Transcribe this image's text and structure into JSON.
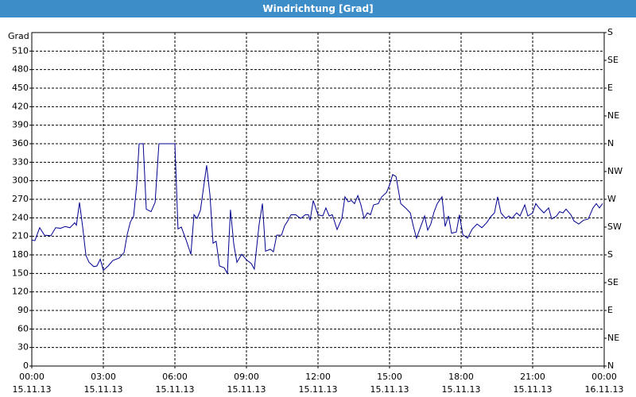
{
  "chart_data": {
    "type": "line",
    "title": "Windrichtung [Grad]",
    "y_label": "Grad",
    "x": [
      0,
      0.13,
      0.33,
      0.53,
      0.8,
      1,
      1.2,
      1.4,
      1.6,
      1.8,
      1.87,
      2,
      2.13,
      2.27,
      2.4,
      2.6,
      2.73,
      2.87,
      3,
      3.2,
      3.4,
      3.67,
      3.87,
      4,
      4.13,
      4.27,
      4.4,
      4.5,
      4.67,
      4.8,
      5,
      5.17,
      5.33,
      5.5,
      6,
      6.13,
      6.27,
      6.47,
      6.67,
      6.8,
      6.93,
      7.07,
      7.33,
      7.47,
      7.6,
      7.73,
      7.87,
      8.07,
      8.2,
      8.33,
      8.47,
      8.6,
      8.8,
      9,
      9.2,
      9.33,
      9.53,
      9.67,
      9.8,
      10,
      10.13,
      10.27,
      10.47,
      10.6,
      10.73,
      10.87,
      11.07,
      11.27,
      11.47,
      11.6,
      11.67,
      11.8,
      12,
      12.2,
      12.33,
      12.47,
      12.6,
      12.8,
      13,
      13.13,
      13.27,
      13.4,
      13.53,
      13.67,
      13.8,
      13.93,
      14.07,
      14.2,
      14.33,
      14.53,
      14.67,
      14.87,
      15,
      15.13,
      15.27,
      15.47,
      15.67,
      15.87,
      16,
      16.13,
      16.27,
      16.47,
      16.6,
      16.73,
      16.87,
      17,
      17.2,
      17.33,
      17.47,
      17.6,
      17.8,
      17.93,
      18.07,
      18.27,
      18.47,
      18.67,
      18.87,
      19.07,
      19.27,
      19.4,
      19.53,
      19.67,
      19.87,
      20,
      20.13,
      20.33,
      20.47,
      20.67,
      20.8,
      21,
      21.13,
      21.27,
      21.47,
      21.67,
      21.8,
      22,
      22.13,
      22.27,
      22.4,
      22.6,
      22.73,
      22.93,
      23.13,
      23.33,
      23.53,
      23.67,
      23.8,
      23.93
    ],
    "series": [
      {
        "color": "#000090",
        "values": [
          204,
          203,
          224,
          212,
          211,
          224,
          223,
          226,
          224,
          232,
          228,
          265,
          226,
          179,
          168,
          161,
          162,
          173,
          155,
          162,
          171,
          175,
          184,
          213,
          233,
          243,
          294,
          360,
          360,
          254,
          250,
          265,
          360,
          360,
          360,
          222,
          225,
          204,
          181,
          245,
          239,
          252,
          325,
          277,
          199,
          202,
          162,
          159,
          150,
          253,
          197,
          168,
          181,
          172,
          166,
          157,
          229,
          263,
          186,
          189,
          185,
          212,
          212,
          227,
          235,
          245,
          245,
          239,
          245,
          245,
          236,
          268,
          245,
          243,
          256,
          243,
          245,
          221,
          239,
          274,
          266,
          268,
          263,
          276,
          261,
          239,
          248,
          245,
          261,
          263,
          274,
          281,
          293,
          310,
          307,
          263,
          256,
          248,
          226,
          207,
          222,
          243,
          220,
          230,
          250,
          263,
          274,
          226,
          243,
          215,
          217,
          245,
          213,
          207,
          222,
          230,
          224,
          232,
          243,
          248,
          274,
          248,
          239,
          243,
          239,
          248,
          243,
          261,
          243,
          248,
          263,
          256,
          248,
          256,
          238,
          243,
          250,
          248,
          254,
          245,
          235,
          230,
          236,
          238,
          256,
          263,
          256,
          263
        ]
      }
    ],
    "xlim": [
      0,
      24
    ],
    "xticks": [
      {
        "value": 0,
        "label": "00:00",
        "date": "15.11.13"
      },
      {
        "value": 3,
        "label": "03:00",
        "date": "15.11.13"
      },
      {
        "value": 6,
        "label": "06:00",
        "date": "15.11.13"
      },
      {
        "value": 9,
        "label": "09:00",
        "date": "15.11.13"
      },
      {
        "value": 12,
        "label": "12:00",
        "date": "15.11.13"
      },
      {
        "value": 15,
        "label": "15:00",
        "date": "15.11.13"
      },
      {
        "value": 18,
        "label": "18:00",
        "date": "15.11.13"
      },
      {
        "value": 21,
        "label": "21:00",
        "date": "15.11.13"
      },
      {
        "value": 24,
        "label": "00:00",
        "date": "16.11.13"
      }
    ],
    "ylim": [
      0,
      540
    ],
    "yticks": [
      0,
      30,
      60,
      90,
      120,
      150,
      180,
      210,
      240,
      270,
      300,
      330,
      360,
      390,
      420,
      450,
      480,
      510
    ],
    "y2lim": [
      0,
      540
    ],
    "y2ticks": [
      {
        "value": 0,
        "label": "N"
      },
      {
        "value": 45,
        "label": "NE"
      },
      {
        "value": 90,
        "label": "E"
      },
      {
        "value": 135,
        "label": "SE"
      },
      {
        "value": 180,
        "label": "S"
      },
      {
        "value": 225,
        "label": "SW"
      },
      {
        "value": 270,
        "label": "W"
      },
      {
        "value": 315,
        "label": "NW"
      },
      {
        "value": 360,
        "label": "N"
      },
      {
        "value": 405,
        "label": "NE"
      },
      {
        "value": 450,
        "label": "E"
      },
      {
        "value": 495,
        "label": "SE"
      },
      {
        "value": 540,
        "label": "S"
      }
    ],
    "grid": true
  }
}
